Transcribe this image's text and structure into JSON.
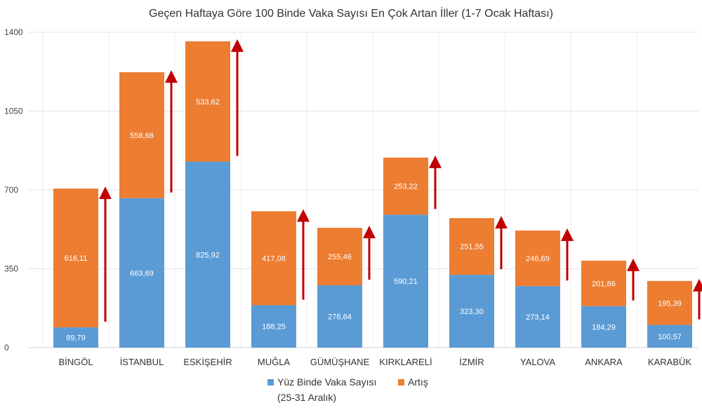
{
  "chart_data": {
    "type": "bar",
    "stacked": true,
    "title": "Geçen Haftaya Göre 100 Binde Vaka Sayısı En Çok Artan İller (1-7 Ocak Haftası)",
    "categories": [
      "BİNGÖL",
      "İSTANBUL",
      "ESKİŞEHİR",
      "MUĞLA",
      "GÜMÜŞHANE",
      "KIRKLARELİ",
      "İZMİR",
      "YALOVA",
      "ANKARA",
      "KARABÜK"
    ],
    "series": [
      {
        "name": "Yüz Binde Vaka Sayısı",
        "name_line2": "(25-31 Aralık)",
        "color": "#5b9bd5",
        "values": [
          89.79,
          663.69,
          825.92,
          188.25,
          276.64,
          590.21,
          323.3,
          273.14,
          184.29,
          100.57
        ],
        "labels": [
          "89,79",
          "663,69",
          "825,92",
          "188,25",
          "276,64",
          "590,21",
          "323,30",
          "273,14",
          "184,29",
          "100,57"
        ]
      },
      {
        "name": "Artış",
        "color": "#ed7d31",
        "values": [
          616.11,
          558.68,
          533.62,
          417.08,
          255.46,
          253.22,
          251.55,
          246.69,
          201.86,
          195.39
        ],
        "labels": [
          "616,11",
          "558,68",
          "533,62",
          "417,08",
          "255,46",
          "253,22",
          "251,55",
          "246,69",
          "201,86",
          "195,39"
        ]
      }
    ],
    "ylim": [
      0,
      1400
    ],
    "yticks": [
      0,
      350,
      700,
      1050,
      1400
    ],
    "grid": true,
    "legend": "bottom",
    "arrow_color": "#c00000"
  }
}
